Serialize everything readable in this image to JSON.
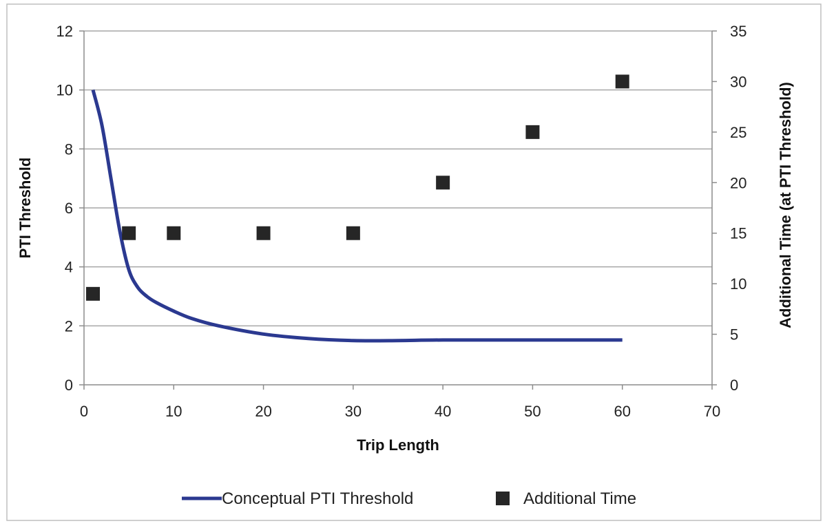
{
  "chart_data": {
    "type": "line",
    "xlabel": "Trip Length",
    "ylabel_left": "PTI Threshold",
    "ylabel_right": "Additional Time (at PTI Threshold)",
    "x_axis": {
      "min": 0,
      "max": 70,
      "ticks": [
        0,
        10,
        20,
        30,
        40,
        50,
        60,
        70
      ]
    },
    "y_left": {
      "min": 0,
      "max": 12,
      "ticks": [
        0,
        2,
        4,
        6,
        8,
        10,
        12
      ]
    },
    "y_right": {
      "min": 0,
      "max": 35,
      "ticks": [
        0,
        5,
        10,
        15,
        20,
        25,
        30,
        35
      ]
    },
    "grid": true,
    "legend_position": "bottom",
    "series": [
      {
        "name": "Conceptual PTI Threshold",
        "type": "line",
        "axis": "left",
        "color": "#2b3990",
        "points": [
          [
            1,
            10
          ],
          [
            2,
            8.8
          ],
          [
            3,
            7.0
          ],
          [
            4,
            5.2
          ],
          [
            5,
            3.9
          ],
          [
            6,
            3.3
          ],
          [
            7,
            3.0
          ],
          [
            8,
            2.8
          ],
          [
            10,
            2.5
          ],
          [
            12,
            2.25
          ],
          [
            15,
            2.0
          ],
          [
            20,
            1.72
          ],
          [
            25,
            1.57
          ],
          [
            30,
            1.5
          ],
          [
            35,
            1.5
          ],
          [
            40,
            1.52
          ],
          [
            50,
            1.52
          ],
          [
            60,
            1.52
          ]
        ]
      },
      {
        "name": "Additional Time",
        "type": "scatter",
        "axis": "right",
        "color": "#262626",
        "points": [
          [
            1,
            9
          ],
          [
            5,
            15
          ],
          [
            10,
            15
          ],
          [
            20,
            15
          ],
          [
            30,
            15
          ],
          [
            40,
            20
          ],
          [
            50,
            25
          ],
          [
            60,
            30
          ]
        ]
      }
    ]
  }
}
